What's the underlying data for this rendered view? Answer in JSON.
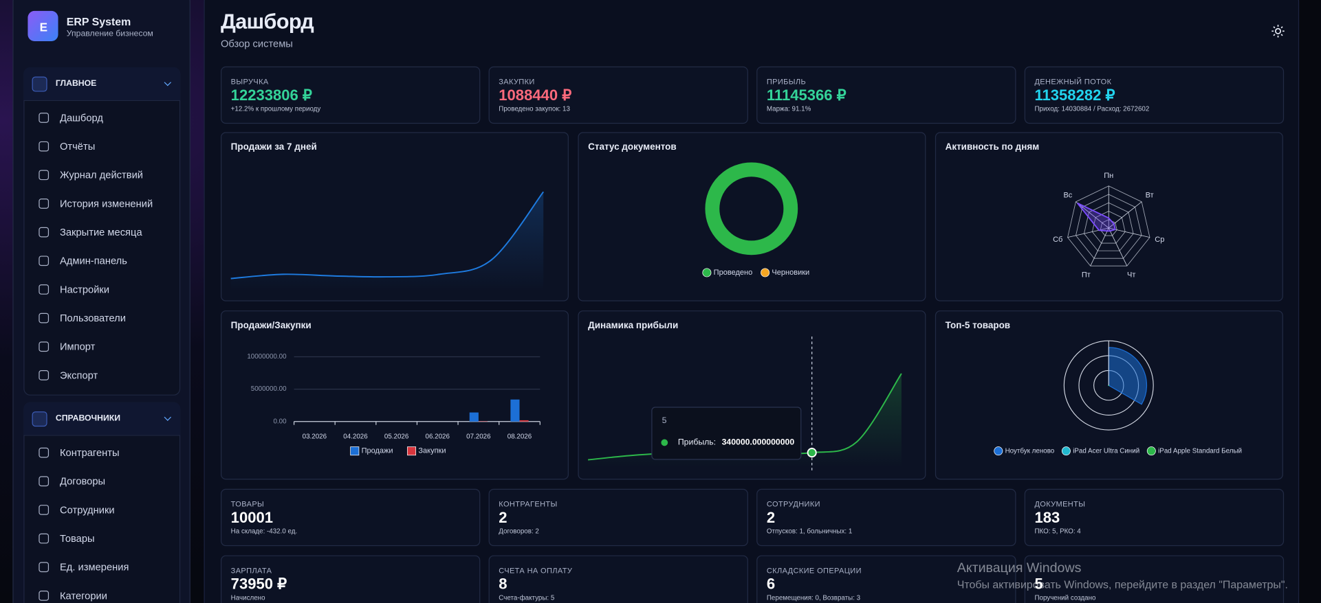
{
  "sidebar": {
    "logo": "E",
    "app_name": "ERP System",
    "app_subtitle": "Управление бизнесом",
    "sections": [
      {
        "title": "ГЛАВНОЕ",
        "items": [
          "Дашборд",
          "Отчёты",
          "Журнал действий",
          "История изменений",
          "Закрытие месяца",
          "Админ-панель",
          "Настройки",
          "Пользователи",
          "Импорт",
          "Экспорт"
        ]
      },
      {
        "title": "СПРАВОЧНИКИ",
        "items": [
          "Контрагенты",
          "Договоры",
          "Сотрудники",
          "Товары",
          "Ед. измерения",
          "Категории"
        ]
      }
    ]
  },
  "header": {
    "title": "Дашборд",
    "subtitle": "Обзор системы"
  },
  "kpis": [
    {
      "label": "ВЫРУЧКА",
      "value": "12233806 ₽",
      "note": "+12.2% к прошлому периоду",
      "color": "#34d399"
    },
    {
      "label": "ЗАКУПКИ",
      "value": "1088440 ₽",
      "note": "Проведено закупок: 13",
      "color": "#fb6a7c"
    },
    {
      "label": "ПРИБЫЛЬ",
      "value": "11145366 ₽",
      "note": "Маржа: 91.1%",
      "color": "#34d399"
    },
    {
      "label": "ДЕНЕЖНЫЙ ПОТОК",
      "value": "11358282 ₽",
      "note": "Приход: 14030884 / Расход: 2672602",
      "color": "#22d3ee"
    }
  ],
  "chart_data": [
    {
      "type": "line",
      "title": "Продажи за 7 дней",
      "values": [
        270000,
        420000,
        360000,
        330000,
        420000,
        930000,
        3360000
      ],
      "color": "#1e7be0"
    },
    {
      "type": "donut",
      "title": "Статус документов",
      "categories": [
        "Проведено",
        "Черновики"
      ],
      "values": [
        183,
        0
      ],
      "colors": [
        "#2db84a",
        "#f5a623"
      ]
    },
    {
      "type": "radar",
      "title": "Активность по дням",
      "categories": [
        "Пн",
        "Вт",
        "Ср",
        "Чт",
        "Пт",
        "Сб",
        "Вс"
      ],
      "values": [
        3,
        2,
        2,
        1,
        1,
        3,
        12
      ],
      "color": "#7c4dff"
    },
    {
      "type": "bar",
      "title": "Продажи/Закупки",
      "categories": [
        "03.2026",
        "04.2026",
        "05.2026",
        "06.2026",
        "07.2026",
        "08.2026"
      ],
      "series": [
        {
          "name": "Продажи",
          "color": "#1c6fd6",
          "values": [
            0,
            0,
            0,
            0,
            1400000,
            3400000
          ]
        },
        {
          "name": "Закупки",
          "color": "#d9363e",
          "values": [
            0,
            0,
            0,
            0,
            50000,
            200000
          ]
        }
      ],
      "ylim": [
        0,
        10000000
      ],
      "yticks": [
        {
          "value": 0,
          "label": "0.00"
        },
        {
          "value": 5000000,
          "label": "5000000.00"
        },
        {
          "value": 10000000,
          "label": "10000000.00"
        }
      ],
      "grid": true
    },
    {
      "type": "line",
      "title": "Динамика прибыли",
      "values": [
        100000,
        250000,
        330000,
        320000,
        330000,
        340000,
        700000,
        3000000
      ],
      "color": "#2db84a",
      "tooltip": {
        "title": "5",
        "label": "Прибыль:",
        "value": "340000.000000000"
      }
    },
    {
      "type": "polar",
      "title": "Топ-5 товаров",
      "categories": [
        "Ноутбук леново",
        "iPad Acer Ultra Синий",
        "iPad Apple Standard Белый"
      ],
      "values": [
        8000000,
        60000,
        40000
      ],
      "colors": [
        "#1c6fd6",
        "#22b8cf",
        "#2db84a"
      ]
    }
  ],
  "stats": [
    {
      "label": "ТОВАРЫ",
      "value": 10001,
      "note": "На складе: -432.0 ед."
    },
    {
      "label": "КОНТРАГЕНТЫ",
      "value": 2,
      "note": "Договоров: 2"
    },
    {
      "label": "СОТРУДНИКИ",
      "value": 2,
      "note": "Отпусков: 1, больничных: 1"
    },
    {
      "label": "ДОКУМЕНТЫ",
      "value": 183,
      "note": "ПКО: 5, РКО: 4"
    },
    {
      "label": "ЗАРПЛАТА",
      "value": "73950 ₽",
      "note": "Начислено"
    },
    {
      "label": "СЧЕТА НА ОПЛАТУ",
      "value": 8,
      "note": "Счета-фактуры: 5"
    },
    {
      "label": "СКЛАДСКИЕ ОПЕРАЦИИ",
      "value": 6,
      "note": "Перемещения: 0, Возвраты: 3"
    },
    {
      "value": 5,
      "note": "Поручений создано"
    }
  ],
  "watermark": {
    "title": "Активация Windows",
    "text": "Чтобы активировать Windows, перейдите в раздел \"Параметры\"."
  }
}
